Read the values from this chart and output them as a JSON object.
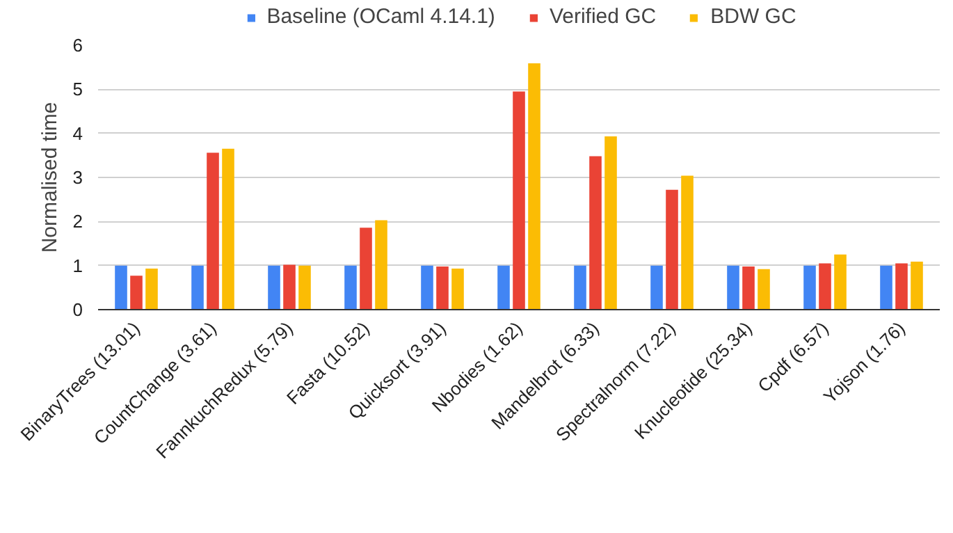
{
  "chart_data": {
    "type": "bar",
    "ylabel": "Normalised time",
    "categories": [
      "BinaryTrees (13.01)",
      "CountChange (3.61)",
      "FannkuchRedux (5.79)",
      "Fasta (10.52)",
      "Quicksort (3.91)",
      "Nbodies (1.62)",
      "Mandelbrot (6.33)",
      "Spectralnorm (7.22)",
      "Knucleotide (25.34)",
      "Cpdf (6.57)",
      "Yojson (1.76)"
    ],
    "series": [
      {
        "name": "Baseline (OCaml 4.14.1)",
        "color": "#4285f4",
        "values": [
          1,
          1,
          1,
          1,
          1,
          1,
          1,
          1,
          1,
          1,
          1
        ]
      },
      {
        "name": "Verified GC",
        "color": "#ea4335",
        "values": [
          0.77,
          3.56,
          1.02,
          1.86,
          0.98,
          4.95,
          3.48,
          2.72,
          0.98,
          1.05,
          1.05
        ]
      },
      {
        "name": "BDW GC",
        "color": "#fbbc04",
        "values": [
          0.93,
          3.65,
          1.0,
          2.03,
          0.93,
          5.59,
          3.93,
          3.04,
          0.92,
          1.25,
          1.09
        ]
      }
    ],
    "ylim": [
      0,
      6
    ],
    "yticks": [
      0,
      1,
      2,
      3,
      4,
      5,
      6
    ],
    "grid": "y",
    "legend": "top"
  }
}
